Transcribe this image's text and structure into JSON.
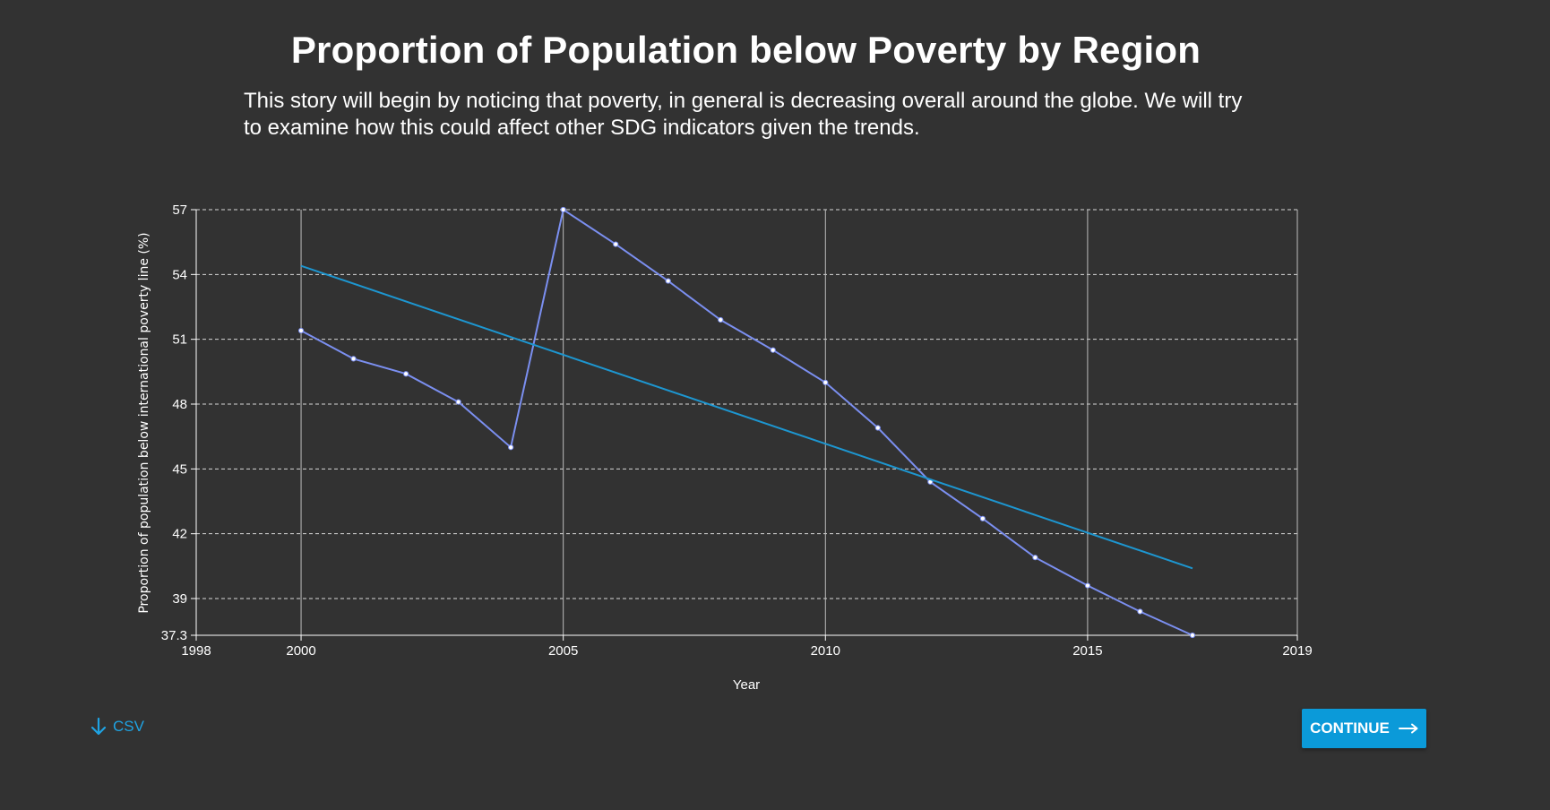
{
  "header": {
    "title": "Proportion of Population below Poverty by Region",
    "description": "This story will begin by noticing that poverty, in general is decreasing overall around the globe. We will try to examine how this could affect other SDG indicators given the trends."
  },
  "chart_data": {
    "type": "line",
    "title": "",
    "xlabel": "Year",
    "ylabel": "Proportion of population below international poverty line (%)",
    "xlim": [
      1998,
      2019
    ],
    "ylim": [
      37.3,
      57
    ],
    "x_ticks": [
      1998,
      2000,
      2005,
      2010,
      2015,
      2019
    ],
    "y_ticks": [
      37.3,
      39,
      42,
      45,
      48,
      51,
      54,
      57
    ],
    "grid": {
      "horizontal": "dashed",
      "vertical": "solid at year ticks"
    },
    "series": [
      {
        "kind": "data",
        "color": "#7b8ff0",
        "markers": true,
        "points": [
          {
            "x": 2000,
            "y": 51.4
          },
          {
            "x": 2001,
            "y": 50.1
          },
          {
            "x": 2002,
            "y": 49.4
          },
          {
            "x": 2003,
            "y": 48.1
          },
          {
            "x": 2004,
            "y": 46.0
          },
          {
            "x": 2005,
            "y": 57.0
          },
          {
            "x": 2006,
            "y": 55.4
          },
          {
            "x": 2007,
            "y": 53.7
          },
          {
            "x": 2008,
            "y": 51.9
          },
          {
            "x": 2009,
            "y": 50.5
          },
          {
            "x": 2010,
            "y": 49.0
          },
          {
            "x": 2011,
            "y": 46.9
          },
          {
            "x": 2012,
            "y": 44.4
          },
          {
            "x": 2013,
            "y": 42.7
          },
          {
            "x": 2014,
            "y": 40.9
          },
          {
            "x": 2015,
            "y": 39.6
          },
          {
            "x": 2016,
            "y": 38.4
          },
          {
            "x": 2017,
            "y": 37.3
          }
        ]
      },
      {
        "kind": "trend",
        "color": "#1d96d0",
        "markers": false,
        "points": [
          {
            "x": 2000,
            "y": 54.4
          },
          {
            "x": 2017,
            "y": 40.4
          }
        ]
      }
    ]
  },
  "footer": {
    "csv_label": "CSV",
    "continue_label": "CONTINUE"
  },
  "colors": {
    "background": "#323232",
    "accent": "#0b9ad9",
    "csv_link": "#1fa3e3"
  }
}
